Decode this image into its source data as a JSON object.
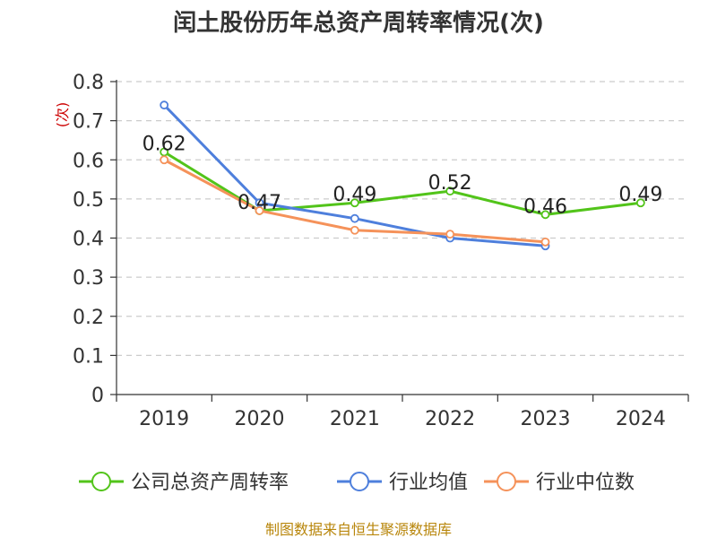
{
  "chart_data": {
    "type": "line",
    "title": "闰土股份历年总资产周转率情况(次)",
    "xlabel": "",
    "ylabel": "(次)",
    "ylim": [
      0,
      0.8
    ],
    "yticks": [
      "0",
      "0.1",
      "0.2",
      "0.3",
      "0.4",
      "0.5",
      "0.6",
      "0.7",
      "0.8"
    ],
    "categories": [
      "2019",
      "2020",
      "2021",
      "2022",
      "2023",
      "2024"
    ],
    "grid": true,
    "legend_position": "bottom",
    "series": [
      {
        "name": "公司总资产周转率",
        "color": "#52c41a",
        "values": [
          0.62,
          0.47,
          0.49,
          0.52,
          0.46,
          0.49
        ],
        "labels": [
          "0.62",
          "0.47",
          "0.49",
          "0.52",
          "0.46",
          "0.49"
        ]
      },
      {
        "name": "行业均值",
        "color": "#4e7fdc",
        "values": [
          0.74,
          0.49,
          0.45,
          0.4,
          0.38,
          null
        ],
        "labels": []
      },
      {
        "name": "行业中位数",
        "color": "#f5925a",
        "values": [
          0.6,
          0.47,
          0.42,
          0.41,
          0.39,
          null
        ],
        "labels": []
      }
    ],
    "source": "制图数据来自恒生聚源数据库"
  }
}
